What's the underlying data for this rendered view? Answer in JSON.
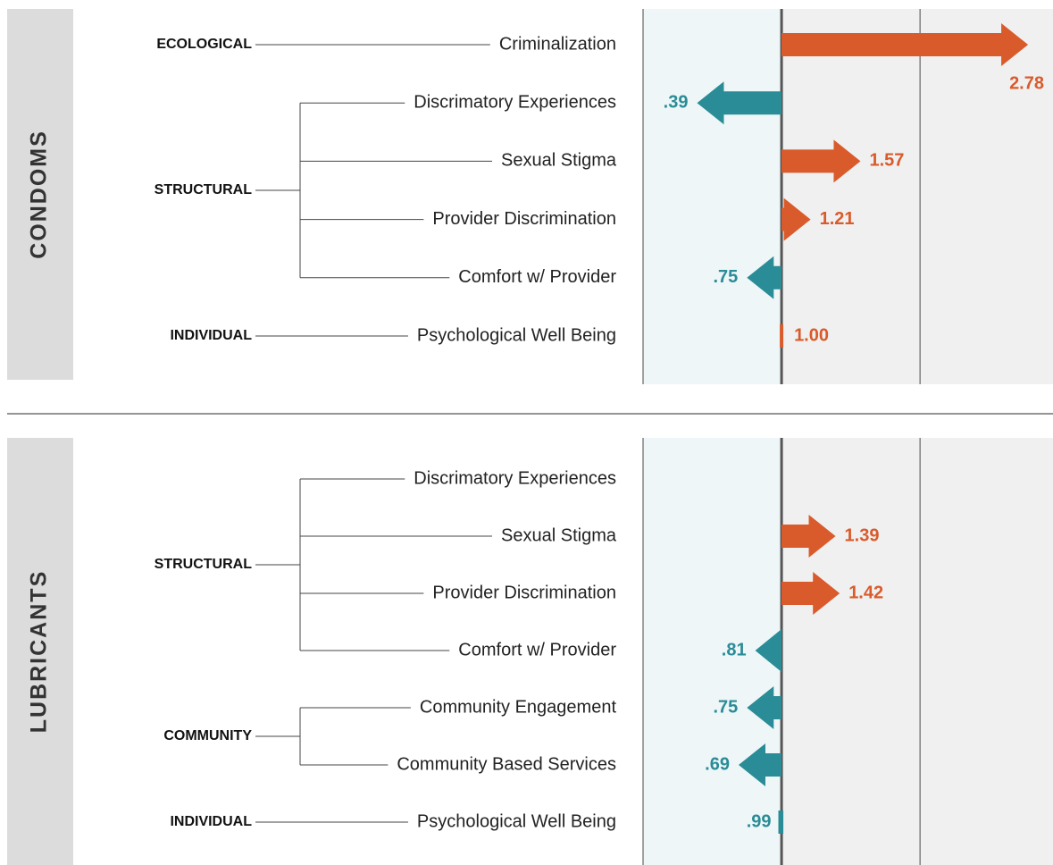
{
  "chart_data": [
    {
      "type": "arrow",
      "title": "CONDOMS",
      "groups": [
        {
          "name": "ECOLOGICAL",
          "categories": [
            "Criminalization"
          ],
          "values": [
            2.78
          ],
          "value_labels": [
            "2.78"
          ]
        },
        {
          "name": "STRUCTURAL",
          "categories": [
            "Discrimatory Experiences",
            "Sexual Stigma",
            "Provider Discrimination",
            "Comfort w/ Provider"
          ],
          "values": [
            0.39,
            1.57,
            1.21,
            0.75
          ],
          "value_labels": [
            ".39",
            "1.57",
            "1.21",
            ".75"
          ]
        },
        {
          "name": "INDIVIDUAL",
          "categories": [
            "Psychological Well Being"
          ],
          "values": [
            1.0
          ],
          "value_labels": [
            "1.00"
          ]
        }
      ],
      "xlim": [
        0,
        2.96
      ],
      "xticks": [
        0,
        1,
        2
      ],
      "baseline": 1,
      "colors": {
        "above": "#d95b2b",
        "below": "#2a8c96"
      }
    },
    {
      "type": "arrow",
      "title": "LUBRICANTS",
      "groups": [
        {
          "name": "STRUCTURAL",
          "categories": [
            "Discrimatory Experiences",
            "Sexual Stigma",
            "Provider Discrimination",
            "Comfort w/ Provider"
          ],
          "values": [
            null,
            1.39,
            1.42,
            0.81
          ],
          "value_labels": [
            null,
            "1.39",
            "1.42",
            ".81"
          ]
        },
        {
          "name": "COMMUNITY",
          "categories": [
            "Community Engagement",
            "Community Based Services"
          ],
          "values": [
            0.75,
            0.69
          ],
          "value_labels": [
            ".75",
            ".69"
          ]
        },
        {
          "name": "INDIVIDUAL",
          "categories": [
            "Psychological Well Being"
          ],
          "values": [
            0.99
          ],
          "value_labels": [
            ".99"
          ]
        }
      ],
      "xlim": [
        0,
        2.96
      ],
      "xticks": [
        0,
        1,
        2
      ],
      "baseline": 1,
      "colors": {
        "above": "#d95b2b",
        "below": "#2a8c96"
      }
    }
  ]
}
